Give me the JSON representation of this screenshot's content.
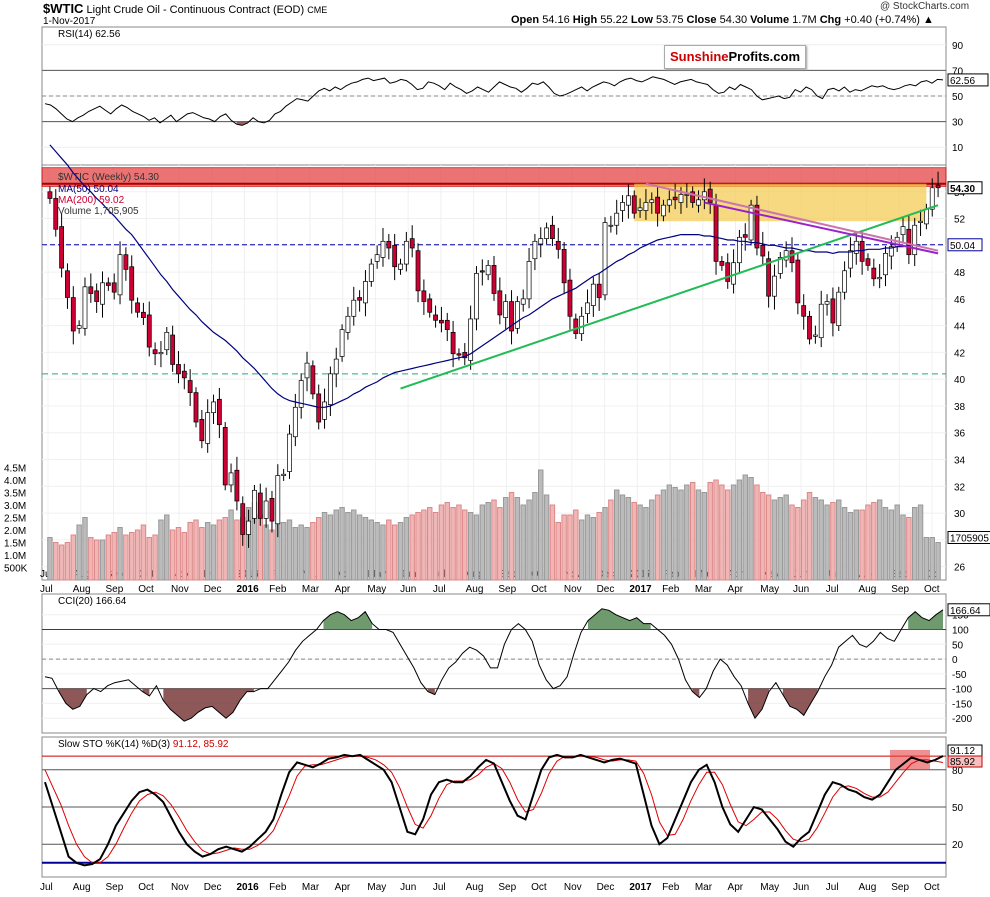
{
  "header": {
    "symbol": "$WTIC",
    "name": "Light Crude Oil - Continuous Contract (EOD)",
    "exchange": "CME",
    "date": "1-Nov-2017",
    "copyright": "@ StockCharts.com",
    "quote": {
      "open_label": "Open",
      "open": "54.16",
      "high_label": "High",
      "high": "55.22",
      "low_label": "Low",
      "low": "53.75",
      "close_label": "Close",
      "close": "54.30",
      "volume_label": "Volume",
      "volume": "1.7M",
      "chg_label": "Chg",
      "chg": "+0.40 (+0.74%)"
    }
  },
  "watermark": {
    "part1": "Sunshine",
    "part2": "Profits.com",
    "color1": "#cc0000"
  },
  "colors": {
    "up_candle": "#ffffff",
    "down_candle": "#cc0033",
    "ma50": "#000080",
    "ma200": "#cc0033",
    "resistance_zone": "#e64545",
    "consolidation_zone": "#f2c94c",
    "support_trend": "#22bb55",
    "downtrend_1": "#cc77aa",
    "downtrend_2": "#9922cc",
    "cci_fill_up": "#558855",
    "cci_fill_down": "#7a3b3b",
    "sto_k": "#000000",
    "sto_d": "#dd0000",
    "sto_lower": "#000099"
  },
  "chart_data": [
    {
      "type": "line",
      "panel": "RSI",
      "title": "RSI(14) 62.56",
      "y_ticks": [
        10,
        30,
        50,
        70,
        90
      ],
      "ylim": [
        0,
        100
      ],
      "levels": [
        30,
        50,
        70
      ],
      "last_value_label": "62.56",
      "values": [
        44,
        43,
        40,
        36,
        32,
        30,
        33,
        35,
        38,
        40,
        42,
        39,
        36,
        40,
        43,
        41,
        38,
        36,
        34,
        31,
        33,
        29,
        32,
        35,
        30,
        33,
        36,
        37,
        35,
        33,
        32,
        30,
        34,
        36,
        31,
        28,
        27,
        29,
        33,
        30,
        29,
        31,
        36,
        38,
        42,
        45,
        48,
        47,
        46,
        50,
        54,
        56,
        54,
        57,
        55,
        58,
        60,
        61,
        63,
        64,
        62,
        63,
        64,
        60,
        61,
        63,
        62,
        59,
        55,
        56,
        61,
        60,
        58,
        55,
        60,
        57,
        55,
        52,
        54,
        57,
        55,
        53,
        57,
        61,
        59,
        57,
        56,
        53,
        56,
        60,
        59,
        61,
        57,
        52,
        50,
        51,
        53,
        55,
        57,
        54,
        57,
        59,
        61,
        60,
        58,
        61,
        63,
        64,
        62,
        61,
        63,
        65,
        64,
        63,
        61,
        59,
        61,
        62,
        63,
        61,
        60,
        59,
        55,
        52,
        53,
        57,
        55,
        59,
        57,
        55,
        50,
        47,
        48,
        49,
        50,
        48,
        49,
        55,
        53,
        57,
        55,
        50,
        48,
        55,
        56,
        54,
        57,
        53,
        55,
        54,
        56,
        58,
        57,
        58,
        56,
        55,
        56,
        58,
        59,
        58,
        61,
        62,
        60,
        63,
        62.56
      ]
    },
    {
      "type": "candlestick",
      "panel": "Price",
      "title": "$WTIC (Weekly) 54.30",
      "legend": [
        "MA(50) 50.04",
        "MA(200) 59.02",
        "Volume 1,705,905"
      ],
      "y_ticks": [
        26,
        28,
        30,
        32,
        34,
        36,
        38,
        40,
        42,
        44,
        46,
        48,
        50,
        52,
        54
      ],
      "ylim": [
        25,
        56
      ],
      "last_price_label": "54.30",
      "ma50_label": "50.04",
      "volume_label": "1705905",
      "volume_ticks": [
        "4.5M",
        "4.0M",
        "3.5M",
        "3.0M",
        "2.5M",
        "2.0M",
        "1.5M",
        "1.0M",
        "500K"
      ],
      "x_labels": [
        "Jul",
        "Aug",
        "Sep",
        "Oct",
        "Nov",
        "Dec",
        "2016",
        "Feb",
        "Mar",
        "Apr",
        "May",
        "Jun",
        "Jul",
        "Aug",
        "Sep",
        "Oct",
        "Nov",
        "Dec",
        "2017",
        "Feb",
        "Mar",
        "Apr",
        "May",
        "Jun",
        "Jul",
        "Aug",
        "Sep",
        "Oct"
      ],
      "closes": [
        53.5,
        51.2,
        48.3,
        46.1,
        43.6,
        44.0,
        46.9,
        46.4,
        45.8,
        47.2,
        47.0,
        46.5,
        49.3,
        48.2,
        45.9,
        45.0,
        44.6,
        42.4,
        41.9,
        42.0,
        43.5,
        41.1,
        40.4,
        40.1,
        39.0,
        36.8,
        35.4,
        37.5,
        38.3,
        36.6,
        32.1,
        33.0,
        30.9,
        28.4,
        29.4,
        31.7,
        29.6,
        30.9,
        29.4,
        32.8,
        32.9,
        35.9,
        37.9,
        39.9,
        41.2,
        38.9,
        36.8,
        38.3,
        40.4,
        41.5,
        43.7,
        44.7,
        45.9,
        45.9,
        47.3,
        48.6,
        49.3,
        50.3,
        49.8,
        48.4,
        48.6,
        50.3,
        49.8,
        46.6,
        45.8,
        45.0,
        44.4,
        44.2,
        43.7,
        41.9,
        41.8,
        41.6,
        44.5,
        47.9,
        48.0,
        48.5,
        46.4,
        44.8,
        45.8,
        43.6,
        45.8,
        46.0,
        48.8,
        50.3,
        50.5,
        51.3,
        50.5,
        49.7,
        47.2,
        44.7,
        43.4,
        44.7,
        45.7,
        47.1,
        46.1,
        51.7,
        51.5,
        52.4,
        53.2,
        53.7,
        52.4,
        52.8,
        53.2,
        53.4,
        52.4,
        53.0,
        53.4,
        53.4,
        53.8,
        53.8,
        53.2,
        53.4,
        54.0,
        53.2,
        48.8,
        48.5,
        47.3,
        48.7,
        50.6,
        50.6,
        53.0,
        49.8,
        49.2,
        46.2,
        47.7,
        49.1,
        49.6,
        48.7,
        45.7,
        44.7,
        43.0,
        43.3,
        45.6,
        45.8,
        44.2,
        46.5,
        48.1,
        49.6,
        50.3,
        48.8,
        48.5,
        47.5,
        47.6,
        49.4,
        49.9,
        50.6,
        51.4,
        49.3,
        51.5,
        51.8,
        52.7,
        54.3,
        54.3
      ],
      "ma50": [
        57.5,
        57.0,
        56.5,
        56.0,
        55.4,
        54.9,
        54.4,
        54.0,
        53.5,
        53.1,
        52.6,
        52.2,
        51.7,
        51.2,
        50.8,
        50.2,
        49.6,
        49.0,
        48.4,
        47.8,
        47.3,
        46.7,
        46.2,
        45.7,
        45.2,
        44.8,
        44.3,
        43.9,
        43.5,
        43.2,
        42.9,
        42.5,
        42.1,
        41.6,
        41.2,
        40.8,
        40.3,
        39.8,
        39.3,
        38.9,
        38.6,
        38.4,
        38.3,
        38.2,
        38.1,
        38.0,
        37.9,
        37.9,
        38.0,
        38.2,
        38.4,
        38.6,
        38.9,
        39.1,
        39.4,
        39.6,
        39.8,
        40.1,
        40.3,
        40.5,
        40.6,
        40.7,
        40.8,
        40.9,
        41.0,
        41.1,
        41.2,
        41.3,
        41.4,
        41.5,
        41.6,
        41.7,
        41.9,
        42.2,
        42.5,
        42.8,
        43.1,
        43.4,
        43.7,
        44.0,
        44.3,
        44.6,
        44.8,
        45.1,
        45.4,
        45.7,
        46.0,
        46.2,
        46.4,
        46.6,
        46.8,
        47.1,
        47.4,
        47.7,
        47.9,
        48.2,
        48.5,
        48.8,
        49.0,
        49.3,
        49.5,
        49.8,
        50.0,
        50.2,
        50.4,
        50.5,
        50.6,
        50.7,
        50.8,
        50.8,
        50.8,
        50.8,
        50.7,
        50.7,
        50.6,
        50.5,
        50.4,
        50.4,
        50.3,
        50.3,
        50.2,
        50.2,
        50.1,
        50.0,
        50.0,
        49.9,
        49.8,
        49.8,
        49.7,
        49.6,
        49.6,
        49.5,
        49.5,
        49.5,
        49.4,
        49.5,
        49.5,
        49.5,
        49.6,
        49.6,
        49.7,
        49.7,
        49.7,
        49.8,
        49.8,
        49.9,
        49.9,
        50.0,
        50.0,
        50.04
      ]
    },
    {
      "type": "line",
      "panel": "CCI",
      "title": "CCI(20) 166.64",
      "y_ticks": [
        -200,
        -150,
        -100,
        -50,
        0,
        50,
        100,
        150
      ],
      "ylim": [
        -250,
        220
      ],
      "levels": [
        -100,
        0,
        100
      ],
      "last_value_label": "166.64",
      "values": [
        -60,
        -65,
        -110,
        -150,
        -170,
        -160,
        -120,
        -100,
        -110,
        -90,
        -80,
        -75,
        -70,
        -90,
        -110,
        -125,
        -90,
        -140,
        -170,
        -190,
        -210,
        -200,
        -180,
        -165,
        -160,
        -180,
        -200,
        -180,
        -140,
        -110,
        -110,
        -100,
        -100,
        -70,
        -40,
        -10,
        30,
        60,
        80,
        100,
        130,
        150,
        160,
        150,
        130,
        140,
        160,
        120,
        100,
        100,
        90,
        50,
        10,
        -30,
        -80,
        -110,
        -120,
        -70,
        -30,
        -10,
        20,
        40,
        30,
        10,
        -30,
        -30,
        50,
        100,
        120,
        100,
        60,
        -20,
        -70,
        -100,
        -90,
        -60,
        20,
        90,
        130,
        150,
        170,
        165,
        150,
        140,
        130,
        140,
        120,
        120,
        100,
        80,
        50,
        0,
        -70,
        -110,
        -130,
        -100,
        -40,
        0,
        -20,
        -60,
        -90,
        -150,
        -200,
        -170,
        -110,
        -80,
        -120,
        -160,
        -170,
        -190,
        -150,
        -110,
        -60,
        -20,
        40,
        60,
        80,
        50,
        40,
        60,
        90,
        70,
        60,
        100,
        140,
        160,
        140,
        130,
        150,
        166.64
      ]
    },
    {
      "type": "line",
      "panel": "SlowSTO",
      "title": "Slow STO %K(14) %D(3)",
      "title_values": "91.12, 85.92",
      "y_ticks": [
        20,
        50,
        80
      ],
      "ylim": [
        0,
        100
      ],
      "levels": [
        20,
        80,
        91
      ],
      "k_label": "91.12",
      "d_label": "85.92",
      "k": [
        70,
        50,
        30,
        10,
        5,
        3,
        4,
        8,
        20,
        35,
        45,
        55,
        62,
        64,
        60,
        54,
        42,
        30,
        20,
        14,
        10,
        12,
        16,
        18,
        16,
        14,
        18,
        24,
        30,
        40,
        60,
        78,
        86,
        84,
        82,
        85,
        89,
        90,
        92,
        91,
        92,
        88,
        84,
        80,
        70,
        50,
        30,
        28,
        40,
        60,
        70,
        72,
        70,
        70,
        75,
        82,
        88,
        85,
        70,
        55,
        43,
        40,
        60,
        80,
        90,
        92,
        90,
        90,
        92,
        90,
        88,
        86,
        88,
        89,
        87,
        85,
        60,
        35,
        20,
        25,
        40,
        55,
        70,
        80,
        84,
        70,
        50,
        36,
        30,
        40,
        50,
        48,
        40,
        32,
        22,
        18,
        25,
        30,
        45,
        60,
        70,
        68,
        64,
        62,
        58,
        56,
        60,
        70,
        80,
        85,
        90,
        88,
        86,
        88,
        91.12
      ],
      "d": [
        80,
        66,
        52,
        35,
        20,
        10,
        5,
        5,
        10,
        20,
        33,
        45,
        55,
        60,
        62,
        59,
        52,
        42,
        31,
        22,
        15,
        12,
        13,
        15,
        17,
        16,
        16,
        19,
        24,
        31,
        45,
        59,
        75,
        83,
        84,
        84,
        86,
        88,
        90,
        91,
        91,
        90,
        88,
        84,
        78,
        66,
        50,
        36,
        33,
        43,
        57,
        68,
        71,
        71,
        72,
        76,
        82,
        85,
        81,
        70,
        56,
        46,
        48,
        61,
        77,
        87,
        91,
        91,
        91,
        91,
        90,
        88,
        87,
        88,
        88,
        87,
        77,
        60,
        38,
        27,
        28,
        40,
        55,
        68,
        78,
        78,
        68,
        52,
        38,
        35,
        40,
        46,
        46,
        40,
        31,
        24,
        22,
        24,
        33,
        45,
        58,
        66,
        67,
        65,
        61,
        58,
        58,
        62,
        70,
        78,
        85,
        88,
        88,
        87,
        85.92
      ],
      "x_labels": [
        "Jul",
        "Aug",
        "Sep",
        "Oct",
        "Nov",
        "Dec",
        "2016",
        "Feb",
        "Mar",
        "Apr",
        "May",
        "Jun",
        "Jul",
        "Aug",
        "Sep",
        "Oct",
        "Nov",
        "Dec",
        "2017",
        "Feb",
        "Mar",
        "Apr",
        "May",
        "Jun",
        "Jul",
        "Aug",
        "Sep",
        "Oct"
      ]
    }
  ]
}
